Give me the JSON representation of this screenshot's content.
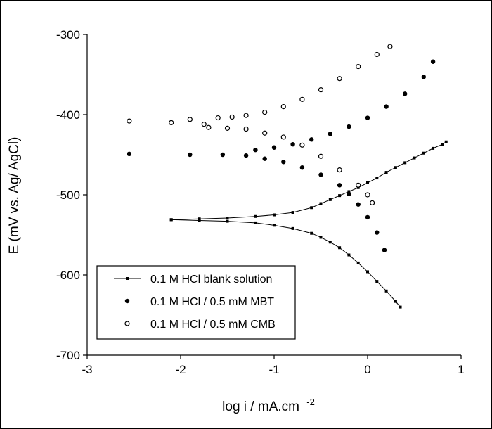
{
  "chart_data": {
    "type": "scatter",
    "xlabel": "log i / mA.cm",
    "xlabel_superscript": "-2",
    "ylabel": "E (mV vs. Ag/ AgCl)",
    "xlim": [
      -3,
      1
    ],
    "ylim": [
      -700,
      -300
    ],
    "x_ticks": [
      -3,
      -2,
      -1,
      0,
      1
    ],
    "y_ticks": [
      -300,
      -400,
      -500,
      -600,
      -700
    ],
    "x_tick_labels": [
      "-3",
      "-2",
      "-1",
      "0",
      "1"
    ],
    "y_tick_labels": [
      "-300",
      "-400",
      "-500",
      "-600",
      "-700"
    ],
    "grid": false,
    "legend_position": "bottom-left",
    "series": [
      {
        "name": "0.1 M HCl blank solution",
        "marker": "small-square-line",
        "color": "#000000",
        "anodic": {
          "x": [
            -2.1,
            -1.8,
            -1.5,
            -1.2,
            -1.0,
            -0.8,
            -0.6,
            -0.5,
            -0.4,
            -0.3,
            -0.2,
            -0.1,
            0.0,
            0.1,
            0.2,
            0.3,
            0.4,
            0.5,
            0.6,
            0.7,
            0.8,
            0.84
          ],
          "y": [
            -531,
            -530,
            -529,
            -527,
            -525,
            -522,
            -516,
            -511,
            -506,
            -501,
            -496,
            -491,
            -485,
            -479,
            -472,
            -466,
            -460,
            -454,
            -448,
            -442,
            -437,
            -434
          ]
        },
        "cathodic": {
          "x": [
            -2.1,
            -1.8,
            -1.5,
            -1.2,
            -1.0,
            -0.8,
            -0.6,
            -0.5,
            -0.4,
            -0.3,
            -0.2,
            -0.1,
            0.0,
            0.1,
            0.2,
            0.3,
            0.35
          ],
          "y": [
            -531,
            -532,
            -533,
            -535,
            -538,
            -542,
            -548,
            -553,
            -559,
            -566,
            -575,
            -585,
            -596,
            -608,
            -620,
            -633,
            -640
          ]
        }
      },
      {
        "name": "0.1 M HCl / 0.5 mM MBT",
        "marker": "filled-circle",
        "color": "#000000",
        "anodic": {
          "x": [
            -2.55,
            -1.9,
            -1.55,
            -1.3,
            -1.2,
            -1.0,
            -0.8,
            -0.6,
            -0.4,
            -0.2,
            0.0,
            0.2,
            0.4,
            0.6,
            0.7
          ],
          "y": [
            -449,
            -450,
            -450,
            -451,
            -444,
            -441,
            -437,
            -431,
            -424,
            -415,
            -404,
            -390,
            -374,
            -353,
            -334
          ]
        },
        "cathodic": {
          "x": [
            -1.1,
            -0.9,
            -0.7,
            -0.5,
            -0.3,
            -0.2,
            -0.1,
            0.0,
            0.1,
            0.18
          ],
          "y": [
            -455,
            -459,
            -466,
            -475,
            -488,
            -499,
            -512,
            -528,
            -547,
            -569
          ]
        }
      },
      {
        "name": "0.1 M HCl / 0.5 mM CMB",
        "marker": "open-circle",
        "color": "#000000",
        "anodic": {
          "x": [
            -2.55,
            -2.1,
            -1.9,
            -1.75,
            -1.6,
            -1.45,
            -1.3,
            -1.1,
            -0.9,
            -0.7,
            -0.5,
            -0.3,
            -0.1,
            0.1,
            0.24
          ],
          "y": [
            -408,
            -410,
            -406,
            -412,
            -404,
            -403,
            -401,
            -397,
            -390,
            -381,
            -369,
            -355,
            -340,
            -325,
            -315
          ]
        },
        "cathodic": {
          "x": [
            -1.7,
            -1.5,
            -1.3,
            -1.1,
            -0.9,
            -0.7,
            -0.5,
            -0.3,
            -0.1,
            0.0,
            0.05
          ],
          "y": [
            -416,
            -417,
            -418,
            -423,
            -428,
            -438,
            -452,
            -469,
            -488,
            -500,
            -510
          ]
        }
      }
    ]
  }
}
